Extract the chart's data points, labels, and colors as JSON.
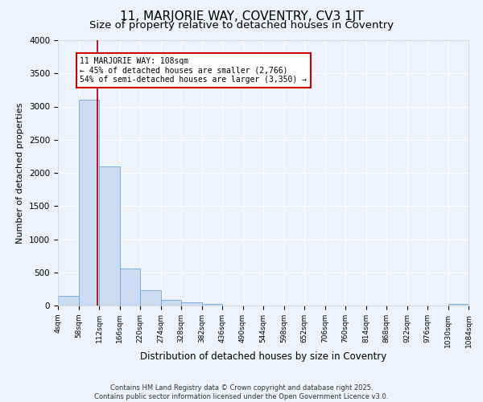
{
  "title": "11, MARJORIE WAY, COVENTRY, CV3 1JT",
  "subtitle": "Size of property relative to detached houses in Coventry",
  "xlabel": "Distribution of detached houses by size in Coventry",
  "ylabel": "Number of detached properties",
  "bar_bins": [
    4,
    58,
    112,
    166,
    220,
    274,
    328,
    382,
    436,
    490,
    544,
    598,
    652,
    706,
    760,
    814,
    868,
    922,
    976,
    1030,
    1084
  ],
  "bar_heights": [
    150,
    3100,
    2100,
    560,
    230,
    80,
    50,
    30,
    0,
    0,
    0,
    0,
    0,
    0,
    0,
    0,
    0,
    0,
    0,
    30
  ],
  "bar_color": "#c5d8f0",
  "bar_edge_color": "#6ba3d6",
  "bar_alpha": 0.85,
  "vline_x": 108,
  "vline_color": "#990000",
  "ylim": [
    0,
    4000
  ],
  "xlim": [
    4,
    1084
  ],
  "annotation_text": "11 MARJORIE WAY: 108sqm\n← 45% of detached houses are smaller (2,766)\n54% of semi-detached houses are larger (3,350) →",
  "annotation_box_color": "#ffffff",
  "annotation_box_edge": "#cc0000",
  "footer_text": "Contains HM Land Registry data © Crown copyright and database right 2025.\nContains public sector information licensed under the Open Government Licence v3.0.",
  "bg_color": "#eef2fb",
  "grid_color": "#ffffff",
  "title_fontsize": 11,
  "subtitle_fontsize": 9.5,
  "tick_label_fontsize": 6.5,
  "ylabel_fontsize": 8,
  "xlabel_fontsize": 8.5,
  "annotation_fontsize": 7,
  "footer_fontsize": 6
}
